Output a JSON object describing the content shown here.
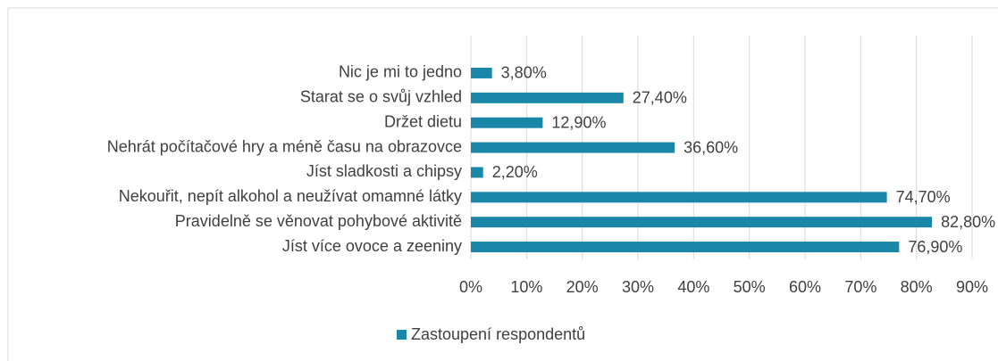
{
  "chart_data": {
    "type": "hbar",
    "categories": [
      "Nic je mi to jedno",
      "Starat se o svůj vzhled",
      "Držet dietu",
      "Nehrát počítačové hry a méně času na obrazovce",
      "Jíst sladkosti a chipsy",
      "Nekouřit, nepít alkohol a neužívat omamné látky",
      "Pravidelně se věnovat pohybové aktivitě",
      "Jíst více ovoce a zeeniny"
    ],
    "series": [
      {
        "name": "Zastoupení respondentů",
        "color": "#1a87a8",
        "values": [
          3.8,
          27.4,
          12.9,
          36.6,
          2.2,
          74.7,
          82.8,
          76.9
        ],
        "value_labels": [
          "3,80%",
          "27,40%",
          "12,90%",
          "36,60%",
          "2,20%",
          "74,70%",
          "82,80%",
          "76,90%"
        ]
      }
    ],
    "xlim": [
      0,
      90
    ],
    "xticks": [
      {
        "value": 0,
        "label": "0%"
      },
      {
        "value": 10,
        "label": "10%"
      },
      {
        "value": 20,
        "label": "20%"
      },
      {
        "value": 30,
        "label": "30%"
      },
      {
        "value": 40,
        "label": "40%"
      },
      {
        "value": 50,
        "label": "50%"
      },
      {
        "value": 60,
        "label": "60%"
      },
      {
        "value": 70,
        "label": "70%"
      },
      {
        "value": 80,
        "label": "80%"
      },
      {
        "value": 90,
        "label": "90%"
      }
    ],
    "grid": true,
    "legend": "bottom"
  }
}
